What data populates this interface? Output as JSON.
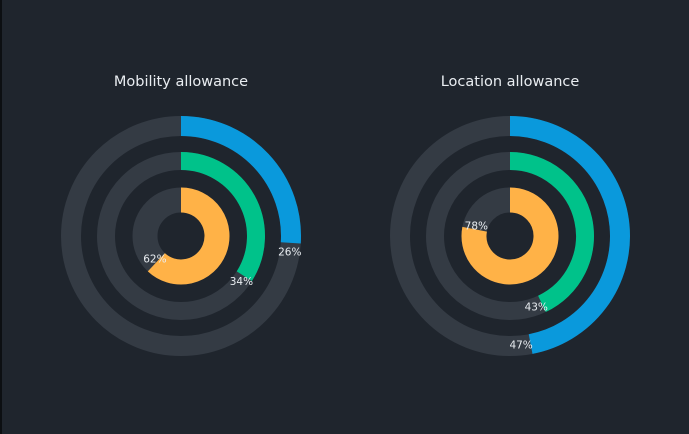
{
  "chart_data": [
    {
      "type": "radial-bar",
      "title": "Mobility allowance",
      "series": [
        {
          "name": "outer",
          "value": 26,
          "label": "26%",
          "color": "#0a99dc"
        },
        {
          "name": "middle",
          "value": 34,
          "label": "34%",
          "color": "#00c28a"
        },
        {
          "name": "inner",
          "value": 62,
          "label": "62%",
          "color": "#ffb247"
        }
      ],
      "range": [
        0,
        100
      ]
    },
    {
      "type": "radial-bar",
      "title": "Location allowance",
      "series": [
        {
          "name": "outer",
          "value": 47,
          "label": "47%",
          "color": "#0a99dc"
        },
        {
          "name": "middle",
          "value": 43,
          "label": "43%",
          "color": "#00c28a"
        },
        {
          "name": "inner",
          "value": 78,
          "label": "78%",
          "color": "#ffb247"
        }
      ],
      "range": [
        0,
        100
      ]
    }
  ],
  "colors": {
    "background": "#1f252d",
    "track": "#343b44",
    "text": "#e9edf1"
  }
}
